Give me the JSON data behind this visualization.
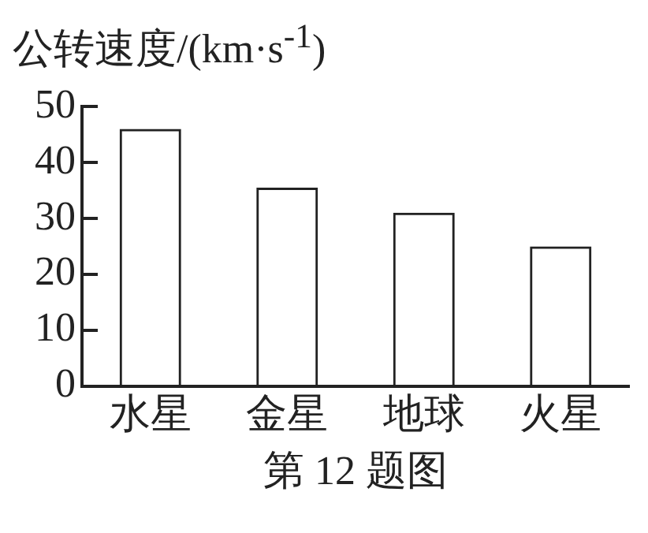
{
  "chart_data": {
    "type": "bar",
    "ylabel": "公转速度/(km·s$^{-1}$)",
    "categories": [
      "水星",
      "金星",
      "地球",
      "火星"
    ],
    "values": [
      46,
      35.5,
      31,
      25
    ],
    "color": "#222222",
    "ylim": [
      0,
      50
    ],
    "yticks": [
      0,
      10,
      20,
      30,
      40,
      50
    ],
    "grid": false,
    "legend": false,
    "annotations": [
      "第 12 题图"
    ]
  }
}
